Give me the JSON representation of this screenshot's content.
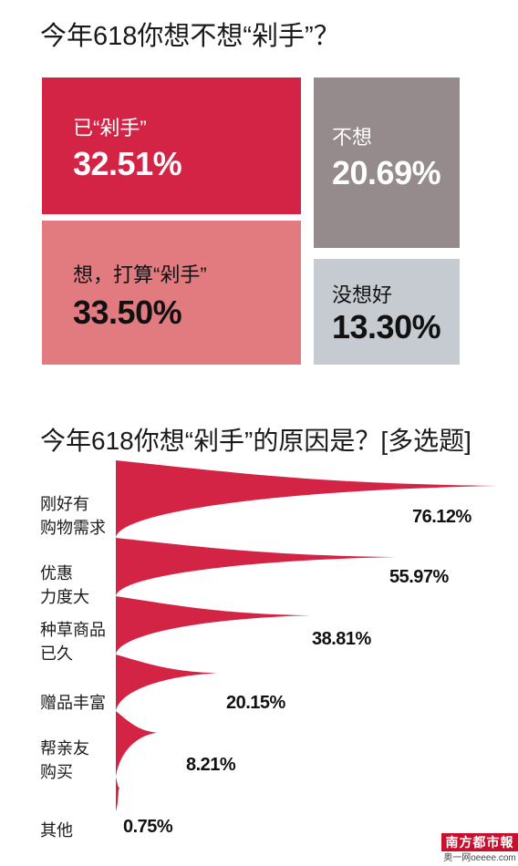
{
  "chart_data": [
    {
      "type": "treemap",
      "title": "今年618你想不想“剁手”？",
      "items": [
        {
          "label": "已“剁手”",
          "value": 32.51,
          "value_text": "32.51%",
          "color": "#d42445"
        },
        {
          "label": "想，打算“剁手”",
          "value": 33.5,
          "value_text": "33.50%",
          "color": "#e17b80"
        },
        {
          "label": "不想",
          "value": 20.69,
          "value_text": "20.69%",
          "color": "#958b8c"
        },
        {
          "label": "没想好",
          "value": 13.3,
          "value_text": "13.30%",
          "color": "#c6cbd1"
        }
      ]
    },
    {
      "type": "bar",
      "title": "今年618你想“剁手”的原因是？[多选题]",
      "categories": [
        [
          "刚好有",
          "购物需求"
        ],
        [
          "优惠",
          "力度大"
        ],
        [
          "种草商品",
          "已久"
        ],
        [
          "赠品丰富"
        ],
        [
          "帮亲友",
          "购买"
        ],
        [
          "其他"
        ]
      ],
      "values": [
        76.12,
        55.97,
        38.81,
        20.15,
        8.21,
        0.75
      ],
      "value_labels": [
        "76.12%",
        "55.97%",
        "38.81%",
        "20.15%",
        "8.21%",
        "0.75%"
      ],
      "color": "#d42445"
    }
  ],
  "logo": {
    "text": "南方都市報",
    "sub": "奥一网oeeee.com"
  }
}
